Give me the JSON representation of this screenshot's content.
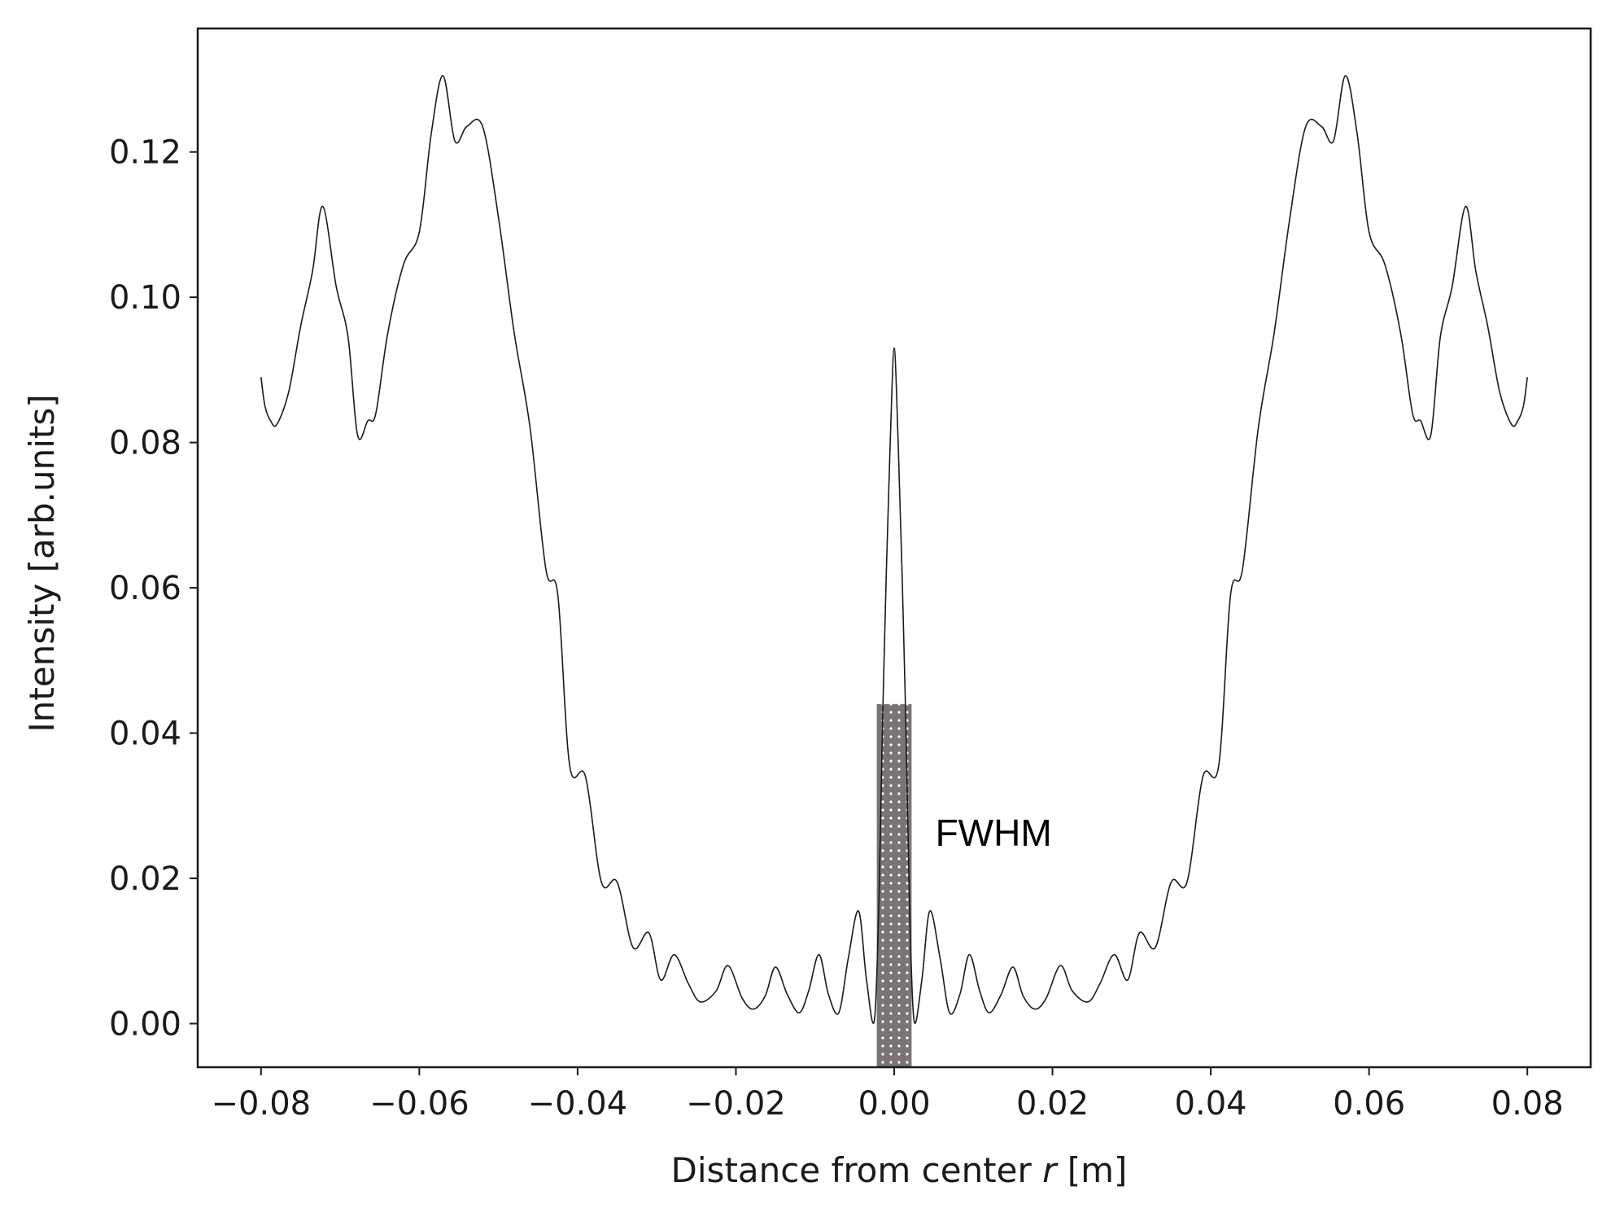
{
  "chart_data": {
    "type": "line",
    "xlabel_prefix": "Distance from center ",
    "xlabel_var": "r",
    "xlabel_suffix": " [m]",
    "ylabel": "Intensity [arb.units]",
    "xlim": [
      -0.088,
      0.088
    ],
    "ylim": [
      -0.006,
      0.137
    ],
    "xticks": [
      -0.08,
      -0.06,
      -0.04,
      -0.02,
      0.0,
      0.02,
      0.04,
      0.06,
      0.08
    ],
    "xtick_labels": [
      "−0.08",
      "−0.06",
      "−0.04",
      "−0.02",
      "0.00",
      "0.02",
      "0.04",
      "0.06",
      "0.08"
    ],
    "yticks": [
      0.0,
      0.02,
      0.04,
      0.06,
      0.08,
      0.1,
      0.12
    ],
    "ytick_labels": [
      "0.00",
      "0.02",
      "0.04",
      "0.06",
      "0.08",
      "0.10",
      "0.12"
    ],
    "grid": false,
    "line_color": "#1a1a1a",
    "series": [
      {
        "x": [
          0.0,
          0.0005,
          0.001,
          0.0015,
          0.0019,
          0.0025,
          0.0035,
          0.0045,
          0.0058,
          0.007,
          0.0083,
          0.0095,
          0.0108,
          0.012,
          0.0135,
          0.015,
          0.0163,
          0.0178,
          0.0192,
          0.021,
          0.0225,
          0.0245,
          0.026,
          0.0278,
          0.0295,
          0.031,
          0.033,
          0.035,
          0.037,
          0.039,
          0.041,
          0.0425,
          0.044,
          0.046,
          0.048,
          0.05,
          0.052,
          0.054,
          0.0555,
          0.057,
          0.0585,
          0.06,
          0.062,
          0.064,
          0.0655,
          0.0665,
          0.0678,
          0.069,
          0.0705,
          0.0722,
          0.0735,
          0.075,
          0.0765,
          0.078,
          0.0788,
          0.0795,
          0.08
        ],
        "y": [
          0.093,
          0.08,
          0.062,
          0.04,
          0.018,
          0.0005,
          0.006,
          0.0155,
          0.009,
          0.0015,
          0.004,
          0.0095,
          0.0045,
          0.0015,
          0.004,
          0.0078,
          0.0038,
          0.002,
          0.0035,
          0.008,
          0.0045,
          0.003,
          0.0055,
          0.0095,
          0.006,
          0.0125,
          0.0105,
          0.0195,
          0.0195,
          0.034,
          0.0355,
          0.059,
          0.0625,
          0.082,
          0.095,
          0.111,
          0.1235,
          0.1235,
          0.1215,
          0.1305,
          0.1225,
          0.109,
          0.1045,
          0.095,
          0.084,
          0.083,
          0.081,
          0.0945,
          0.1015,
          0.1125,
          0.1035,
          0.096,
          0.087,
          0.0825,
          0.083,
          0.085,
          0.089
        ]
      }
    ],
    "fwhm_band": {
      "x": [
        -0.0022,
        0.0022
      ],
      "y": [
        -0.006,
        0.044
      ],
      "label": "FWHM",
      "label_x": 0.0052,
      "label_y": 0.0245,
      "color": "#7a7474"
    }
  }
}
